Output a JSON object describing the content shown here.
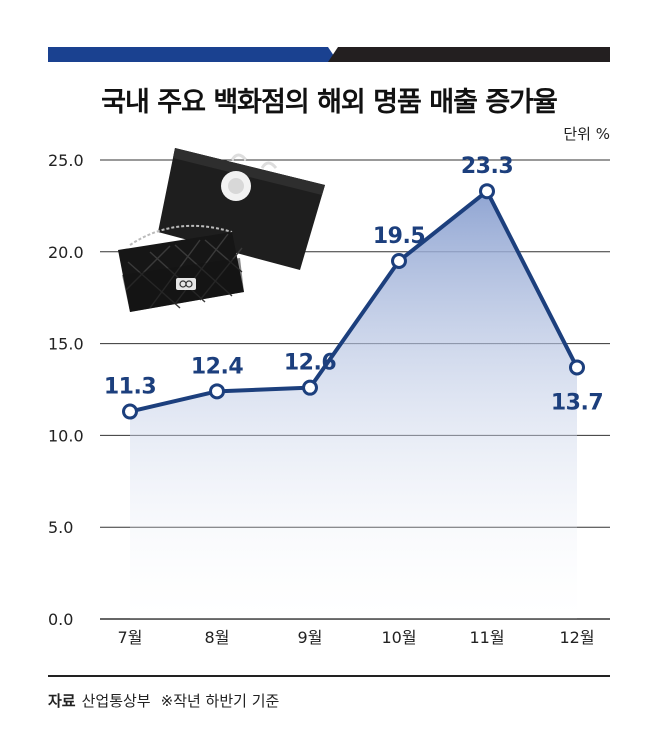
{
  "title": "국내 주요 백화점의 해외 명품 매출 증가율",
  "unit": "단위 %",
  "source": {
    "label": "자료",
    "text": "산업통상부",
    "note": "※작년 하반기 기준"
  },
  "colors": {
    "line": "#1c3f7d",
    "label": "#1c3f7d",
    "topbar_left": "#1a4190",
    "topbar_right": "#231f20",
    "grid": "#333333",
    "fill_top": "#8aa0d0"
  },
  "illustration": "luxury-handbag-and-shopping-bag",
  "chart_data": {
    "type": "area",
    "categories": [
      "7월",
      "8월",
      "9월",
      "10월",
      "11월",
      "12월"
    ],
    "values": [
      11.3,
      12.4,
      12.6,
      19.5,
      23.3,
      13.7
    ],
    "data_labels": [
      "11.3",
      "12.4",
      "12.6",
      "19.5",
      "23.3",
      "13.7"
    ],
    "y_ticks": [
      "0.0",
      "5.0",
      "10.0",
      "15.0",
      "20.0",
      "25.0"
    ],
    "ylim": [
      0,
      25
    ],
    "grid": true
  }
}
